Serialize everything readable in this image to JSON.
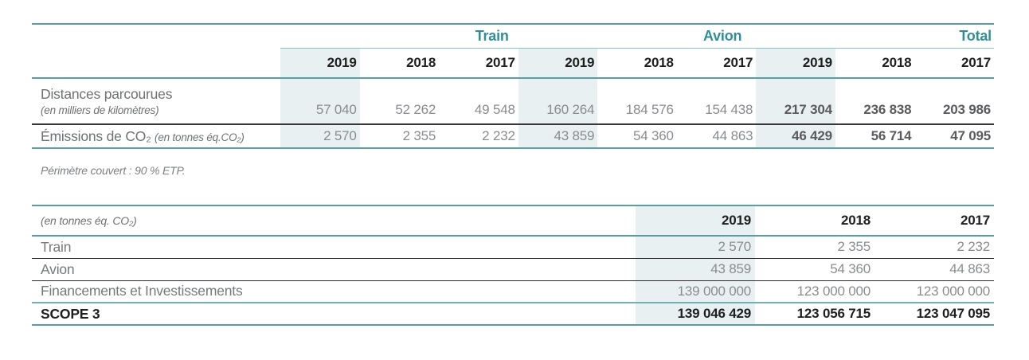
{
  "colors": {
    "teal_heading": "#2f8f98",
    "teal_rule": "#5a9da4",
    "teal_rule_light": "#8cbfc4",
    "dark_rule": "#37383a",
    "column_shade": "#e8f0f1",
    "text_dark": "#1f1f21",
    "text_value_gray": "#8a8c8f",
    "text_label_gray": "#6f7173",
    "text_bold_gray": "#5a5b5e"
  },
  "transport_table": {
    "groups": [
      "Train",
      "Avion",
      "Total"
    ],
    "years": [
      "2019",
      "2018",
      "2017",
      "2019",
      "2018",
      "2017",
      "2019",
      "2018",
      "2017"
    ],
    "rows": [
      {
        "label": "Distances parcourues",
        "sublabel": "(en milliers de kilomètres)",
        "values": [
          "57 040",
          "52 262",
          "49 548",
          "160 264",
          "184 576",
          "154 438",
          "217 304",
          "236 838",
          "203 986"
        ]
      },
      {
        "label": "Émissions de CO₂",
        "sublabel": "(en tonnes éq.CO₂)",
        "values": [
          "2 570",
          "2 355",
          "2 232",
          "43 859",
          "54 360",
          "44 863",
          "46 429",
          "56 714",
          "47 095"
        ]
      }
    ]
  },
  "note": "Périmètre couvert : 90 % ETP.",
  "scope_table": {
    "unit_label": "(en tonnes éq. CO₂)",
    "years": [
      "2019",
      "2018",
      "2017"
    ],
    "rows": [
      {
        "label": "Train",
        "values": [
          "2 570",
          "2 355",
          "2 232"
        ]
      },
      {
        "label": "Avion",
        "values": [
          "43 859",
          "54 360",
          "44 863"
        ]
      },
      {
        "label": "Financements et Investissements",
        "values": [
          "139 000 000",
          "123 000 000",
          "123 000 000"
        ]
      },
      {
        "label": "SCOPE 3",
        "values": [
          "139 046 429",
          "123 056 715",
          "123 047 095"
        ]
      }
    ]
  }
}
